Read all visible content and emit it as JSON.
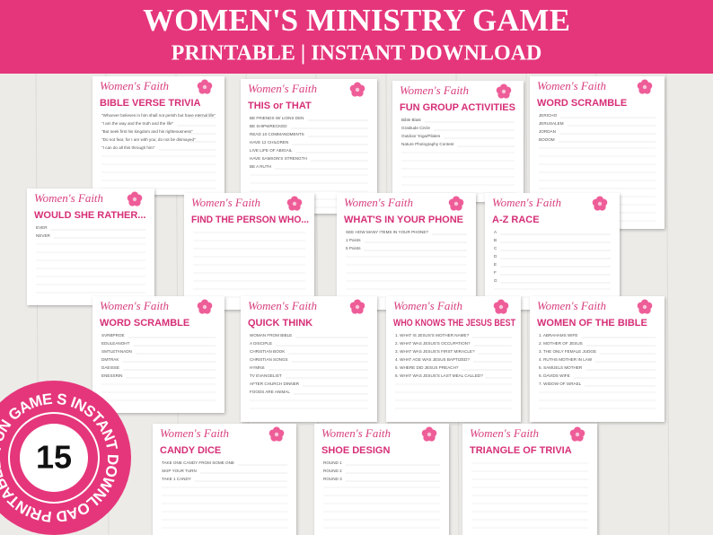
{
  "header": {
    "title": "WOMEN'S MINISTRY GAME",
    "subtitle": "PRINTABLE | INSTANT DOWNLOAD"
  },
  "brand": "Women's Faith",
  "cards": [
    {
      "title": "BIBLE VERSE TRIVIA",
      "lines": [
        "\"Whoever believes in him shall not perish but have eternal life\"",
        "\"I am the way and the truth and the life\"",
        "\"But seek first his kingdom and his righteousness\"",
        "\"Do not fear, for I am with you; do not be dismayed\"",
        "\"I can do all this through him\""
      ]
    },
    {
      "title": "THIS or THAT",
      "lines": [
        "BE FRIENDS W/ LIONS DEN",
        "BE SHIPWRECKED",
        "READ 10 COMMANDMENTS",
        "HAVE 12 CHILDREN",
        "LIVE LIFE OF ABIGAIL",
        "HAVE SAMSON'S STRENGTH",
        "BE A RUTH"
      ]
    },
    {
      "title": "FUN GROUP ACTIVITIES",
      "lines": [
        "Bible Blast",
        "Gratitude Circle",
        "Outdoor Yoga/Pilates",
        "Nature Photography Contest"
      ]
    },
    {
      "title": "WORD SCRAMBLE",
      "lines": [
        "JERICHO",
        "JERUSALEM",
        "JORDAN",
        "BOOOM"
      ]
    },
    {
      "title": "WOULD SHE RATHER...",
      "lines": [
        "EVER",
        "NEVER"
      ]
    },
    {
      "title": "FIND THE PERSON WHO...",
      "lines": []
    },
    {
      "title": "WHAT'S IN YOUR PHONE",
      "lines": [
        "SEE HOW MANY ITEMS IN YOUR PHONE?",
        "1 Points",
        "5 Points"
      ]
    },
    {
      "title": "A-Z RACE",
      "lines": [
        "A",
        "B",
        "C",
        "D",
        "E",
        "F",
        "G"
      ]
    },
    {
      "title": "WORD SCRAMBLE",
      "lines": [
        "SVRBPROE",
        "EDULEANOHT",
        "SMTLETANADN",
        "DMTRAK",
        "DAEISSE",
        "ENESSRIN"
      ]
    },
    {
      "title": "QUICK THINK",
      "lines": [
        "WOMAN FROM BIBLE",
        "A DISCIPLE",
        "CHRISTIAN BOOK",
        "CHRISTIAN SONGS",
        "HYMNS",
        "TV EVANGELIST",
        "AFTER CHURCH DINNER",
        "FOODS ARE ANIMAL"
      ]
    },
    {
      "title": "WHO KNOWS THE JESUS BEST",
      "lines": [
        "1. WHAT IS JESUS'S MOTHER NAME?",
        "2. WHAT WAS JESUS'S OCCUPATION?",
        "3. WHAT WAS JESUS'S FIRST MIRACLE?",
        "4. WHAT AGE WAS JESUS BAPTIZED?",
        "5. WHERE DID JESUS PREACH?",
        "6. WHAT WAS JESUS'S LAST MEAL CALLED?"
      ]
    },
    {
      "title": "WOMEN OF THE BIBLE",
      "lines": [
        "1. ABRAHAMS WIFE",
        "2. MOTHER OF JESUS",
        "3. THE ONLY FEMALE JUDGE",
        "4. RUTHS MOTHER IN LAW",
        "5. SAMUELS MOTHER",
        "6. DAVIDS WIFE",
        "7. WIDOW OF ISRAEL"
      ]
    },
    {
      "title": "CANDY DICE",
      "lines": [
        "TAKE ONE CANDY FROM SOME ONE",
        "SKIP YOUR TURN",
        "TAKE 1 CANDY"
      ]
    },
    {
      "title": "SHOE DESIGN",
      "lines": [
        "ROUND 1",
        "ROUND 2",
        "ROUND 3"
      ]
    },
    {
      "title": "TRIANGLE OF TRIVIA",
      "lines": []
    }
  ],
  "badge": {
    "number": "15",
    "ring": "FUN GAME S INSTANT DOWNLOAD PRINTABLE"
  }
}
